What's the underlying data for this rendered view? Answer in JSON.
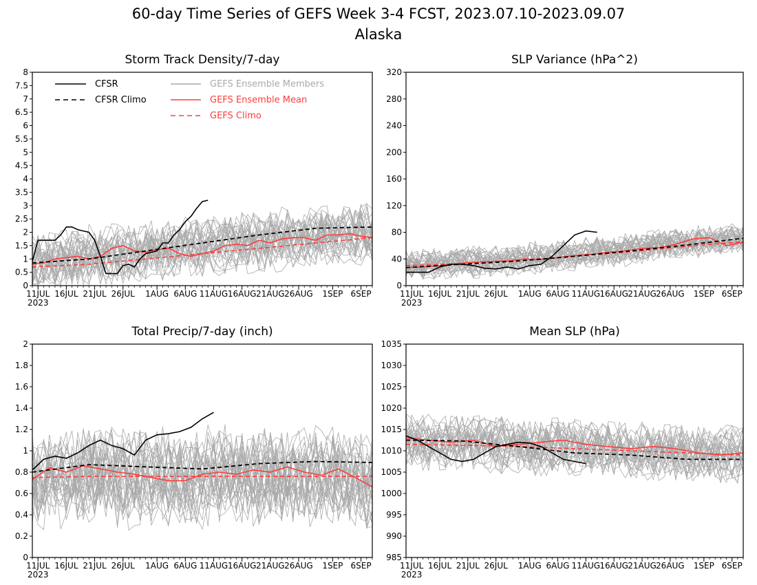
{
  "title": "60-day Time Series of GEFS Week 3-4 FCST, 2023.07.10-2023.09.07",
  "subtitle": "Alaska",
  "colors": {
    "cfsr": "#000000",
    "members": "#a9a9a9",
    "mean": "#ff3b3b",
    "climo_gefs": "#ff3b3b"
  },
  "legend": {
    "cfsr": "CFSR",
    "cfsr_climo": "CFSR Climo",
    "members": "GEFS Ensemble Members",
    "mean": "GEFS Ensemble Mean",
    "gefs_climo": "GEFS Climo"
  },
  "x_ticks": [
    {
      "day": 1,
      "label": "11JUL"
    },
    {
      "day": 6,
      "label": "16JUL"
    },
    {
      "day": 11,
      "label": "21JUL"
    },
    {
      "day": 16,
      "label": "26JUL"
    },
    {
      "day": 22,
      "label": "1AUG"
    },
    {
      "day": 27,
      "label": "6AUG"
    },
    {
      "day": 32,
      "label": "11AUG"
    },
    {
      "day": 37,
      "label": "16AUG"
    },
    {
      "day": 42,
      "label": "21AUG"
    },
    {
      "day": 47,
      "label": "26AUG"
    },
    {
      "day": 53,
      "label": "1SEP"
    },
    {
      "day": 58,
      "label": "6SEP"
    }
  ],
  "x_year": "2023",
  "chart_data": [
    {
      "type": "line",
      "title": "Storm Track Density/7-day",
      "ylim": [
        0,
        8
      ],
      "yticks": [
        "0",
        "0.5",
        "1",
        "1.5",
        "2",
        "2.5",
        "3",
        "3.5",
        "4",
        "4.5",
        "5",
        "5.5",
        "6",
        "6.5",
        "7",
        "7.5",
        "8"
      ],
      "series": [
        {
          "name": "CFSR",
          "style": "solid-black",
          "x": [
            0,
            1,
            2,
            3,
            4,
            5,
            6,
            7,
            8,
            9,
            10,
            11,
            12,
            13,
            14,
            15,
            16,
            17,
            18,
            19,
            20,
            21,
            22,
            23,
            24,
            25,
            26,
            27,
            28,
            29,
            30,
            31
          ],
          "values": [
            0.9,
            1.7,
            1.7,
            1.7,
            1.7,
            1.9,
            2.2,
            2.2,
            2.1,
            2.05,
            2.0,
            1.7,
            1.1,
            0.45,
            0.45,
            0.45,
            0.75,
            0.8,
            0.7,
            1.0,
            1.2,
            1.25,
            1.3,
            1.6,
            1.6,
            1.9,
            2.1,
            2.4,
            2.6,
            2.9,
            3.15,
            3.2
          ]
        },
        {
          "name": "CFSR Climo",
          "style": "dashed-black",
          "x": [
            0,
            10,
            20,
            30,
            40,
            50,
            60
          ],
          "values": [
            0.85,
            1.0,
            1.3,
            1.6,
            1.9,
            2.15,
            2.2
          ]
        },
        {
          "name": "GEFS Ensemble Mean",
          "style": "solid-red",
          "x": [
            0,
            2,
            4,
            6,
            8,
            10,
            12,
            14,
            16,
            18,
            20,
            22,
            24,
            26,
            28,
            30,
            32,
            34,
            36,
            38,
            40,
            42,
            44,
            46,
            48,
            50,
            52,
            54,
            56,
            58,
            60
          ],
          "values": [
            0.8,
            0.85,
            1.0,
            1.05,
            1.1,
            1.0,
            1.1,
            1.4,
            1.5,
            1.3,
            1.25,
            1.35,
            1.4,
            1.2,
            1.1,
            1.2,
            1.3,
            1.5,
            1.55,
            1.5,
            1.7,
            1.6,
            1.75,
            1.8,
            1.8,
            1.7,
            1.9,
            1.9,
            1.95,
            1.85,
            1.8
          ]
        },
        {
          "name": "GEFS Climo",
          "style": "dashed-red",
          "x": [
            0,
            10,
            20,
            30,
            40,
            50,
            60
          ],
          "values": [
            0.7,
            0.8,
            1.0,
            1.2,
            1.4,
            1.6,
            1.8
          ]
        }
      ],
      "members_band": {
        "count": 30,
        "center": [
          0.8,
          1.1,
          1.3,
          1.5,
          1.7,
          1.85,
          1.95
        ],
        "spread": 1.05,
        "lo": 0.05
      }
    },
    {
      "type": "line",
      "title": "SLP Variance (hPa^2)",
      "ylim": [
        0,
        320
      ],
      "yticks": [
        "0",
        "40",
        "80",
        "120",
        "160",
        "200",
        "240",
        "280",
        "320"
      ],
      "series": [
        {
          "name": "CFSR",
          "style": "solid-black",
          "x": [
            0,
            2,
            4,
            6,
            8,
            10,
            12,
            14,
            16,
            18,
            20,
            22,
            24,
            26,
            28,
            30,
            32,
            34
          ],
          "values": [
            20,
            20,
            20,
            28,
            32,
            32,
            30,
            26,
            25,
            28,
            25,
            30,
            32,
            44,
            60,
            76,
            82,
            80
          ]
        },
        {
          "name": "CFSR Climo",
          "style": "dashed-black",
          "x": [
            0,
            10,
            20,
            30,
            40,
            50,
            60
          ],
          "values": [
            27,
            32,
            37,
            44,
            52,
            61,
            71
          ]
        },
        {
          "name": "GEFS Ensemble Mean",
          "style": "solid-red",
          "x": [
            0,
            3,
            6,
            9,
            12,
            15,
            18,
            21,
            24,
            27,
            30,
            33,
            36,
            39,
            42,
            45,
            48,
            51,
            54,
            57,
            60
          ],
          "values": [
            27,
            28,
            30,
            33,
            35,
            36,
            37,
            40,
            39,
            42,
            45,
            47,
            50,
            52,
            56,
            57,
            62,
            70,
            72,
            60,
            65
          ]
        },
        {
          "name": "GEFS Climo",
          "style": "dashed-red",
          "x": [
            0,
            10,
            20,
            30,
            40,
            50,
            60
          ],
          "values": [
            30,
            33,
            38,
            44,
            51,
            59,
            66
          ]
        }
      ],
      "members_band": {
        "count": 30,
        "center": [
          30,
          35,
          40,
          47,
          55,
          65,
          70
        ],
        "spread": 22,
        "lo": 10
      }
    },
    {
      "type": "line",
      "title": "Total Precip/7-day (inch)",
      "ylim": [
        0,
        2
      ],
      "yticks": [
        "0",
        "0.2",
        "0.4",
        "0.6",
        "0.8",
        "1",
        "1.2",
        "1.4",
        "1.6",
        "1.8",
        "2"
      ],
      "series": [
        {
          "name": "CFSR",
          "style": "solid-black",
          "x": [
            0,
            2,
            4,
            6,
            8,
            10,
            12,
            14,
            16,
            18,
            20,
            22,
            24,
            26,
            28,
            30,
            32
          ],
          "values": [
            0.82,
            0.92,
            0.95,
            0.93,
            0.98,
            1.05,
            1.1,
            1.05,
            1.02,
            0.96,
            1.1,
            1.15,
            1.16,
            1.18,
            1.22,
            1.3,
            1.36
          ]
        },
        {
          "name": "CFSR Climo",
          "style": "dashed-black",
          "x": [
            0,
            10,
            20,
            30,
            40,
            50,
            60
          ],
          "values": [
            0.8,
            0.87,
            0.85,
            0.83,
            0.88,
            0.9,
            0.89
          ]
        },
        {
          "name": "GEFS Ensemble Mean",
          "style": "solid-red",
          "x": [
            0,
            3,
            6,
            9,
            12,
            15,
            18,
            21,
            24,
            27,
            30,
            33,
            36,
            39,
            42,
            45,
            48,
            51,
            54,
            57,
            60
          ],
          "values": [
            0.73,
            0.84,
            0.8,
            0.86,
            0.83,
            0.8,
            0.78,
            0.75,
            0.72,
            0.72,
            0.78,
            0.8,
            0.78,
            0.82,
            0.8,
            0.85,
            0.8,
            0.77,
            0.83,
            0.75,
            0.66
          ]
        },
        {
          "name": "GEFS Climo",
          "style": "dashed-red",
          "x": [
            0,
            10,
            20,
            30,
            40,
            50,
            60
          ],
          "values": [
            0.75,
            0.76,
            0.76,
            0.76,
            0.76,
            0.76,
            0.76
          ]
        }
      ],
      "members_band": {
        "count": 30,
        "center": [
          0.72,
          0.76,
          0.75,
          0.75,
          0.76,
          0.75,
          0.7
        ],
        "spread": 0.42,
        "lo": 0.25
      }
    },
    {
      "type": "line",
      "title": "Mean SLP (hPa)",
      "ylim": [
        985,
        1035
      ],
      "yticks": [
        "985",
        "990",
        "995",
        "1000",
        "1005",
        "1010",
        "1015",
        "1020",
        "1025",
        "1030",
        "1035"
      ],
      "series": [
        {
          "name": "CFSR",
          "style": "solid-black",
          "x": [
            0,
            2,
            4,
            6,
            8,
            10,
            12,
            14,
            16,
            18,
            20,
            22,
            24,
            26,
            28,
            30,
            32
          ],
          "values": [
            1013.5,
            1012.5,
            1011,
            1009.5,
            1008,
            1007.5,
            1008,
            1009.5,
            1011,
            1011.5,
            1012,
            1011.8,
            1011,
            1009.5,
            1008,
            1007.5,
            1007
          ]
        },
        {
          "name": "CFSR Climo",
          "style": "dashed-black",
          "x": [
            0,
            10,
            20,
            30,
            40,
            50,
            60
          ],
          "values": [
            1012.5,
            1012.3,
            1011,
            1009.5,
            1009,
            1008,
            1008
          ]
        },
        {
          "name": "GEFS Ensemble Mean",
          "style": "solid-red",
          "x": [
            0,
            4,
            8,
            12,
            16,
            20,
            24,
            28,
            32,
            36,
            40,
            44,
            48,
            52,
            56,
            60
          ],
          "values": [
            1013,
            1012.5,
            1012,
            1012.5,
            1011,
            1011.5,
            1012,
            1012.5,
            1011.5,
            1011,
            1010.5,
            1011,
            1010.5,
            1009.5,
            1009,
            1009.5
          ]
        },
        {
          "name": "GEFS Climo",
          "style": "dashed-red",
          "x": [
            0,
            10,
            20,
            30,
            40,
            50,
            60
          ],
          "values": [
            1011.5,
            1011.3,
            1011,
            1010.5,
            1010,
            1009.5,
            1009
          ]
        }
      ],
      "members_band": {
        "count": 30,
        "center": [
          1012,
          1012,
          1011,
          1011,
          1010,
          1009.5,
          1009
        ],
        "spread": 6,
        "lo": 1000
      }
    }
  ]
}
